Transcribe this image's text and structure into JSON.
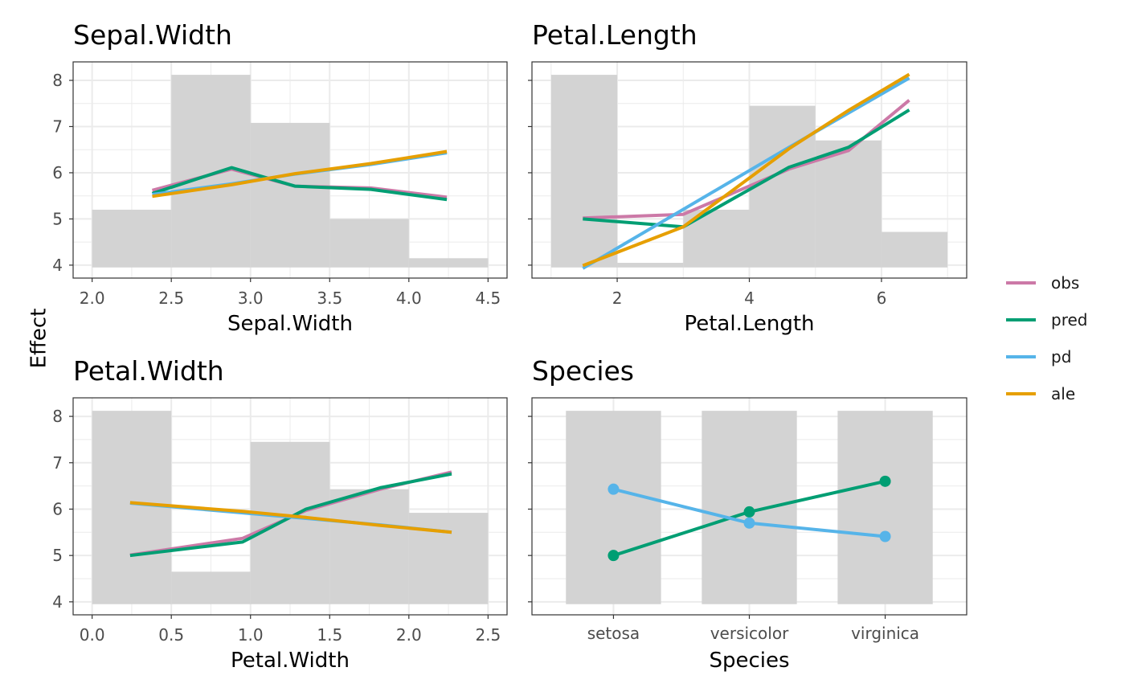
{
  "y_axis_title": "Effect",
  "colors": {
    "obs": "#CC79A7",
    "pred": "#009E73",
    "pd": "#56B4E9",
    "ale": "#E69F00",
    "histogram": "#d3d3d3"
  },
  "legend": [
    {
      "key": "obs",
      "label": "obs"
    },
    {
      "key": "pred",
      "label": "pred"
    },
    {
      "key": "pd",
      "label": "pd"
    },
    {
      "key": "ale",
      "label": "ale"
    }
  ],
  "chart_data": [
    {
      "type": "line",
      "title": "Sepal.Width",
      "xlabel": "Sepal.Width",
      "ylabel": "Effect",
      "xlim": [
        1.88,
        4.62
      ],
      "ylim": [
        3.72,
        8.4
      ],
      "xticks": [
        2.0,
        2.5,
        3.0,
        3.5,
        4.0,
        4.5
      ],
      "xtick_labels": [
        "2.0",
        "2.5",
        "3.0",
        "3.5",
        "4.0",
        "4.5"
      ],
      "yticks": [
        4,
        5,
        6,
        7,
        8
      ],
      "ytick_labels": [
        "4",
        "5",
        "6",
        "7",
        "8"
      ],
      "histogram": [
        {
          "x0": 2.0,
          "x1": 2.5,
          "top": 5.2
        },
        {
          "x0": 2.5,
          "x1": 3.0,
          "top": 8.12
        },
        {
          "x0": 3.0,
          "x1": 3.5,
          "top": 7.08
        },
        {
          "x0": 3.5,
          "x1": 4.0,
          "top": 5.0
        },
        {
          "x0": 4.0,
          "x1": 4.5,
          "top": 4.15
        }
      ],
      "series": [
        {
          "name": "obs",
          "x": [
            2.38,
            2.88,
            3.28,
            3.76,
            4.24
          ],
          "y": [
            5.62,
            6.08,
            5.71,
            5.67,
            5.47
          ]
        },
        {
          "name": "pred",
          "x": [
            2.38,
            2.88,
            3.28,
            3.76,
            4.24
          ],
          "y": [
            5.55,
            6.11,
            5.71,
            5.64,
            5.42
          ]
        },
        {
          "name": "pd",
          "x": [
            2.38,
            2.88,
            3.28,
            3.76,
            4.24
          ],
          "y": [
            5.53,
            5.76,
            5.97,
            6.18,
            6.43
          ]
        },
        {
          "name": "ale",
          "x": [
            2.38,
            2.88,
            3.28,
            3.76,
            4.24
          ],
          "y": [
            5.49,
            5.74,
            5.98,
            6.2,
            6.46
          ]
        }
      ]
    },
    {
      "type": "line",
      "title": "Petal.Length",
      "xlabel": "Petal.Length",
      "ylabel": "Effect",
      "xlim": [
        0.71,
        7.29
      ],
      "ylim": [
        3.72,
        8.4
      ],
      "xticks": [
        2,
        4,
        6
      ],
      "xtick_labels": [
        "2",
        "4",
        "6"
      ],
      "yticks": [
        4,
        5,
        6,
        7,
        8
      ],
      "ytick_labels": [
        "",
        "",
        "",
        "",
        ""
      ],
      "histogram": [
        {
          "x0": 1,
          "x1": 2,
          "top": 8.12
        },
        {
          "x0": 2,
          "x1": 3,
          "top": 4.05
        },
        {
          "x0": 3,
          "x1": 4,
          "top": 5.2
        },
        {
          "x0": 4,
          "x1": 5,
          "top": 7.45
        },
        {
          "x0": 5,
          "x1": 6,
          "top": 6.7
        },
        {
          "x0": 6,
          "x1": 7,
          "top": 4.72
        }
      ],
      "series": [
        {
          "name": "obs",
          "x": [
            1.48,
            3.0,
            4.6,
            5.5,
            6.42
          ],
          "y": [
            5.02,
            5.1,
            6.08,
            6.48,
            7.57
          ]
        },
        {
          "name": "pred",
          "x": [
            1.48,
            3.0,
            4.6,
            5.5,
            6.42
          ],
          "y": [
            5.0,
            4.83,
            6.12,
            6.55,
            7.36
          ]
        },
        {
          "name": "pd",
          "x": [
            1.48,
            4.6,
            6.42
          ],
          "y": [
            3.93,
            6.55,
            8.05
          ]
        },
        {
          "name": "ale",
          "x": [
            1.48,
            3.0,
            4.6,
            5.5,
            6.42
          ],
          "y": [
            3.99,
            4.83,
            6.52,
            7.35,
            8.13
          ]
        }
      ]
    },
    {
      "type": "line",
      "title": "Petal.Width",
      "xlabel": "Petal.Width",
      "ylabel": "Effect",
      "xlim": [
        -0.12,
        2.62
      ],
      "ylim": [
        3.72,
        8.4
      ],
      "xticks": [
        0.0,
        0.5,
        1.0,
        1.5,
        2.0,
        2.5
      ],
      "xtick_labels": [
        "0.0",
        "0.5",
        "1.0",
        "1.5",
        "2.0",
        "2.5"
      ],
      "yticks": [
        4,
        5,
        6,
        7,
        8
      ],
      "ytick_labels": [
        "4",
        "5",
        "6",
        "7",
        "8"
      ],
      "histogram": [
        {
          "x0": 0.0,
          "x1": 0.5,
          "top": 8.12
        },
        {
          "x0": 0.5,
          "x1": 1.0,
          "top": 4.65
        },
        {
          "x0": 1.0,
          "x1": 1.5,
          "top": 7.45
        },
        {
          "x0": 1.5,
          "x1": 2.0,
          "top": 6.43
        },
        {
          "x0": 2.0,
          "x1": 2.5,
          "top": 5.92
        }
      ],
      "series": [
        {
          "name": "obs",
          "x": [
            0.24,
            0.95,
            1.35,
            1.82,
            2.27
          ],
          "y": [
            5.01,
            5.37,
            5.97,
            6.43,
            6.8
          ]
        },
        {
          "name": "pred",
          "x": [
            0.24,
            0.95,
            1.35,
            1.82,
            2.27
          ],
          "y": [
            5.0,
            5.29,
            6.0,
            6.46,
            6.76
          ]
        },
        {
          "name": "pd",
          "x": [
            0.24,
            0.95,
            1.35,
            1.82,
            2.27
          ],
          "y": [
            6.13,
            5.92,
            5.8,
            5.66,
            5.5
          ]
        },
        {
          "name": "ale",
          "x": [
            0.24,
            0.95,
            1.35,
            1.82,
            2.27
          ],
          "y": [
            6.14,
            5.95,
            5.82,
            5.65,
            5.5
          ]
        }
      ]
    },
    {
      "type": "line",
      "title": "Species",
      "xlabel": "Species",
      "ylabel": "Effect",
      "categories": [
        "setosa",
        "versicolor",
        "virginica"
      ],
      "ylim": [
        3.72,
        8.4
      ],
      "yticks": [
        4,
        5,
        6,
        7,
        8
      ],
      "ytick_labels": [
        "",
        "",
        "",
        "",
        ""
      ],
      "histogram_tops": [
        8.12,
        8.12,
        8.12
      ],
      "series": [
        {
          "name": "pred",
          "values": [
            5.0,
            5.94,
            6.6
          ]
        },
        {
          "name": "pd",
          "values": [
            6.43,
            5.7,
            5.41
          ]
        }
      ]
    }
  ]
}
